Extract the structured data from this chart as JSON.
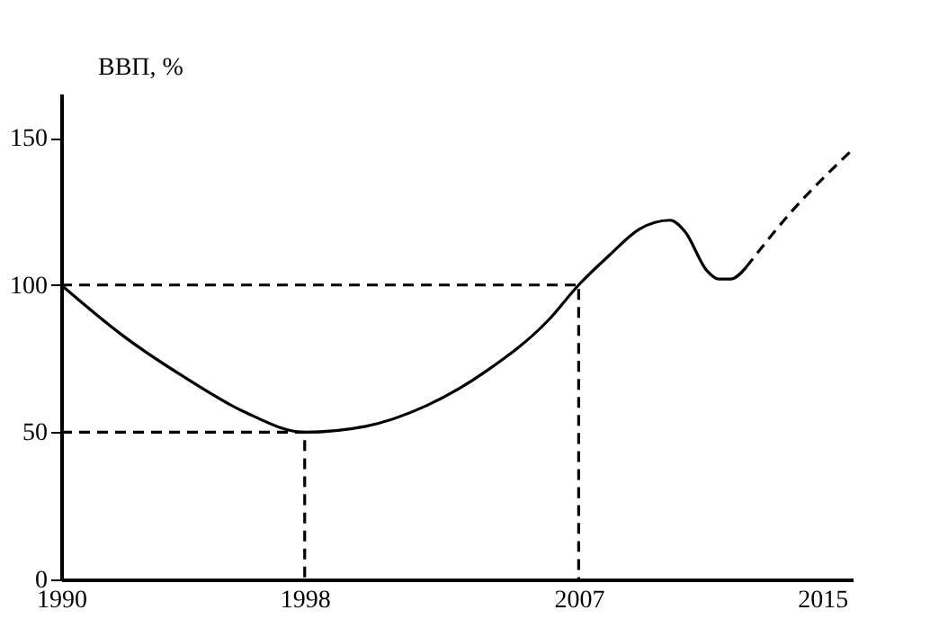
{
  "chart_data": {
    "type": "line",
    "ylabel": "ВВП, %",
    "xlim": [
      1990,
      2016
    ],
    "xticks": [
      1990,
      1998,
      2007,
      2015
    ],
    "ylim": [
      0,
      165
    ],
    "yticks": [
      0,
      50,
      100,
      150
    ],
    "grid": false,
    "marker": "none",
    "series": [
      {
        "color": "#000000",
        "line_style": "solid",
        "x": [
          1990,
          1992,
          1994,
          1996,
          1998,
          2000,
          2002,
          2004,
          2006,
          2007,
          2008,
          2009,
          2010,
          2010.5,
          2011.2,
          2011.6,
          2012,
          2012.5
        ],
        "values": [
          100,
          83,
          69,
          57,
          50,
          52,
          59,
          71,
          88,
          100,
          110,
          119,
          122,
          118,
          105,
          102,
          102,
          106
        ]
      },
      {
        "color": "#000000",
        "line_style": "dashed",
        "x": [
          2012.5,
          2014,
          2016
        ],
        "values": [
          106,
          125,
          146
        ]
      },
      {
        "color": "#000000",
        "line_style": "dashed",
        "x": [
          1990,
          2007,
          2007
        ],
        "values": [
          100,
          100,
          0
        ]
      },
      {
        "color": "#000000",
        "line_style": "dashed",
        "x": [
          1990,
          1998,
          1998
        ],
        "values": [
          50,
          50,
          0
        ]
      }
    ]
  }
}
